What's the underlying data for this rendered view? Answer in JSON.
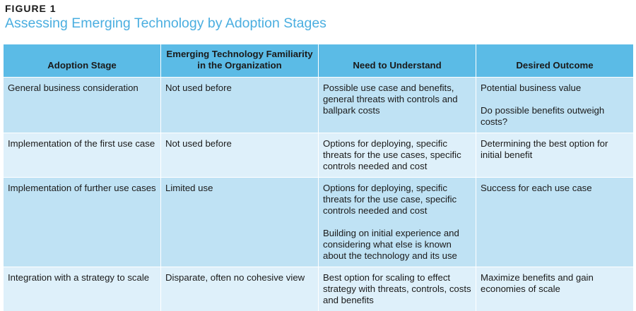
{
  "figure": {
    "label": "FIGURE 1",
    "title": "Assessing Emerging Technology by Adoption Stages"
  },
  "table": {
    "headers": [
      "Adoption Stage",
      "Emerging Technology Familiarity in the Organization",
      "Need to Understand",
      "Desired Outcome"
    ],
    "rows": [
      {
        "stage": "General business consideration",
        "familiarity": "Not used before",
        "need": [
          "Possible use case and benefits, general threats with controls and ballpark costs"
        ],
        "outcome": [
          "Potential business value",
          "Do possible benefits outweigh costs?"
        ]
      },
      {
        "stage": "Implementation of the first use case",
        "familiarity": "Not used before",
        "need": [
          "Options for deploying, specific threats for the use cases, specific controls needed and cost"
        ],
        "outcome": [
          "Determining the best option for initial benefit"
        ]
      },
      {
        "stage": "Implementation of further use cases",
        "familiarity": "Limited use",
        "need": [
          "Options for deploying, specific threats for the use case, specific controls needed and cost",
          "Building on initial experience and considering what else is known about the technology and its use"
        ],
        "outcome": [
          "Success for each use case"
        ]
      },
      {
        "stage": "Integration with a strategy to scale",
        "familiarity": "Disparate, often no cohesive view",
        "need": [
          "Best option for scaling to effect strategy with threats, controls, costs and benefits"
        ],
        "outcome": [
          "Maximize benefits and gain economies of scale"
        ]
      }
    ]
  }
}
